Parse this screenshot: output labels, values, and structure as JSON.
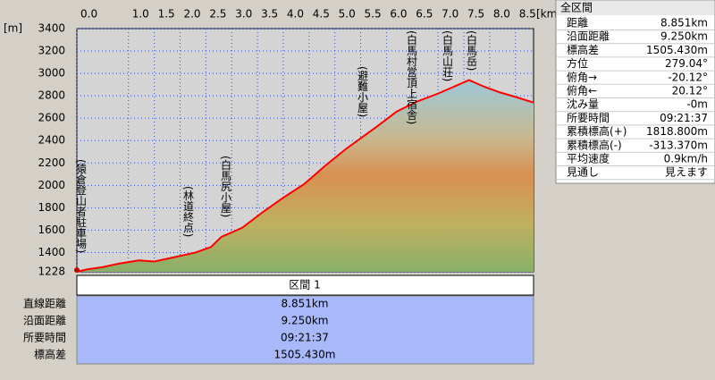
{
  "chart_data": {
    "type": "line",
    "y_unit": "[m]",
    "x_unit": "[km]",
    "xlim": [
      0,
      8.851
    ],
    "ylim": [
      1228,
      3400
    ],
    "xticks": [
      {
        "value": 0,
        "label": "0.0"
      },
      {
        "value": 1,
        "label": "1.0"
      },
      1.5,
      {
        "value": 2,
        "label": "2.0"
      },
      2.5,
      {
        "value": 3,
        "label": "3.0"
      },
      3.5,
      {
        "value": 4,
        "label": "4.0"
      },
      4.5,
      {
        "value": 5,
        "label": "5.0"
      },
      5.5,
      {
        "value": 6,
        "label": "6.0"
      },
      6.5,
      {
        "value": 7,
        "label": "7.0"
      },
      7.5,
      {
        "value": 8,
        "label": "8.0"
      },
      8.5
    ],
    "yticks": [
      1228,
      1400,
      1600,
      1800,
      2000,
      2200,
      2400,
      2600,
      2800,
      3000,
      3200,
      3400
    ],
    "grid": true,
    "series": [
      {
        "color": "#ff0000",
        "x": [
          0,
          0.2,
          0.5,
          0.8,
          1.2,
          1.5,
          2.0,
          2.3,
          2.6,
          2.8,
          3.2,
          3.6,
          4.0,
          4.4,
          4.8,
          5.2,
          5.5,
          5.8,
          6.2,
          6.6,
          7.0,
          7.3,
          7.6,
          7.9,
          8.2,
          8.5,
          8.851
        ],
        "values": [
          1228,
          1250,
          1270,
          1300,
          1330,
          1320,
          1370,
          1400,
          1450,
          1540,
          1620,
          1760,
          1890,
          2010,
          2170,
          2320,
          2420,
          2520,
          2660,
          2750,
          2820,
          2880,
          2940,
          2880,
          2830,
          2790,
          2740
        ]
      }
    ],
    "annotations": [
      "(猿倉登山者駐車場)",
      "(林道終点)",
      "(白馬尻小屋)",
      "(避難小屋)",
      "(白馬村営頂上宿舎)",
      "(白馬山荘)",
      "(白馬岳)"
    ]
  },
  "summary_panel": {
    "title": "全区間",
    "rows": [
      [
        "距離",
        "8.851km"
      ],
      [
        "沿面距離",
        "9.250km"
      ],
      [
        "標高差",
        "1505.430m"
      ],
      [
        "方位",
        "279.04°"
      ],
      [
        "俯角→",
        "-20.12°"
      ],
      [
        "俯角←",
        "20.12°"
      ],
      [
        "沈み量",
        "-0m"
      ],
      [
        "所要時間",
        "09:21:37"
      ],
      [
        "累積標高(+)",
        "1818.800m"
      ],
      [
        "累積標高(-)",
        "-313.370m"
      ],
      [
        "平均速度",
        "0.9km/h"
      ],
      [
        "見通し",
        "見えます"
      ]
    ]
  },
  "section_table": {
    "header": "区間 1",
    "rows": [
      [
        "直線距離",
        "8.851km"
      ],
      [
        "沿面距離",
        "9.250km"
      ],
      [
        "所要時間",
        "09:21:37"
      ],
      [
        "標高差",
        "1505.430m"
      ]
    ]
  }
}
